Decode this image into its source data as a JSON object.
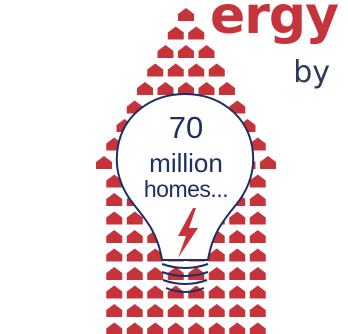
{
  "headline": {
    "line1": "ergy",
    "line2": "by"
  },
  "bulb": {
    "count": "70",
    "unit": "million",
    "noun": "homes..."
  },
  "colors": {
    "house": "#c6343b",
    "text_dark": "#1d2f63",
    "bulb_outline": "#1d2f63",
    "bolt": "#c6343b"
  },
  "icons": {
    "house_marker": "house-icon",
    "bulb": "light-bulb-icon",
    "bolt": "lightning-bolt-icon"
  }
}
